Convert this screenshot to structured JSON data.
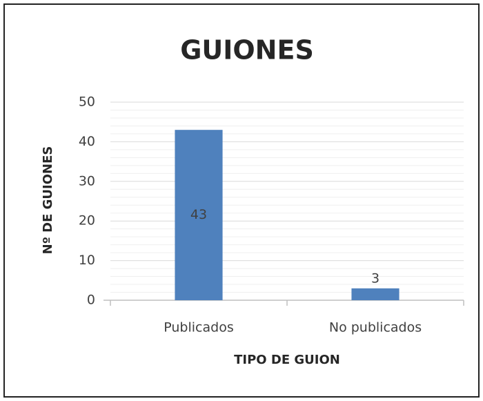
{
  "chart_data": {
    "type": "bar",
    "title": "GUIONES",
    "x_label": "TIPO DE GUION",
    "y_label": "Nº DE GUIONES",
    "categories": [
      "Publicados",
      "No publicados"
    ],
    "values": [
      43,
      3
    ],
    "color": "#4f81bd",
    "ylim": [
      0,
      50
    ],
    "yticks": [
      0,
      10,
      20,
      30,
      40,
      50
    ],
    "minor_yticks": [
      2,
      4,
      6,
      8,
      12,
      14,
      16,
      18,
      22,
      24,
      26,
      28,
      32,
      34,
      36,
      38,
      42,
      44,
      46,
      48
    ],
    "grid": true,
    "data_labels": true
  }
}
